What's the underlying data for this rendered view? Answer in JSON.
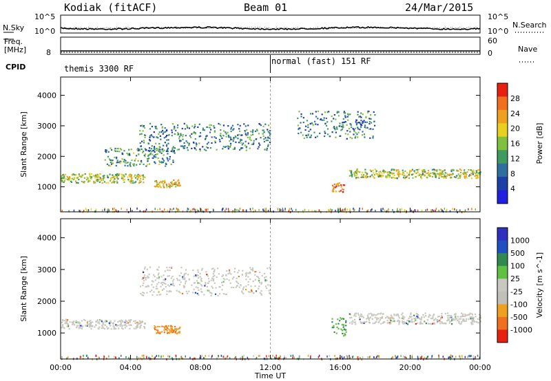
{
  "header": {
    "radar": "Kodiak (fitACF)",
    "beam": "Beam 01",
    "date": "24/Mar/2015"
  },
  "strip_panels": {
    "nsky_label": "N.Sky",
    "nsky_ticks": [
      "10^5",
      "10^0"
    ],
    "nsearch_label": "N.Search",
    "nsearch_ticks": [
      "10^5",
      "10^0"
    ],
    "freq_label_line1": "Freq.",
    "freq_label_line2": "[MHz]",
    "freq_ticks": [
      "8"
    ],
    "nave_label": "Nave",
    "nave_ticks": [
      "60",
      "0"
    ],
    "cpid_label": "CPID"
  },
  "modes": [
    {
      "text": "themis 3300 RF",
      "start_hour": 0
    },
    {
      "text": "normal (fast) 151 RF",
      "start_hour": 12
    }
  ],
  "colors": {
    "power_scale": [
      "#2020e0",
      "#1e3fa8",
      "#2f6fa0",
      "#3f9a60",
      "#7fc040",
      "#e8d020",
      "#f0a020",
      "#f07020",
      "#e82010"
    ],
    "velocity_scale": [
      "#3030c0",
      "#2050c0",
      "#308a50",
      "#60c040",
      "#c8c8c0",
      "#c0c0b8",
      "#f0a020",
      "#f07020",
      "#e82010"
    ]
  },
  "chart_data": [
    {
      "type": "heatmap",
      "panel": "power",
      "xlabel": "Time UT",
      "ylabel": "Slant Range [km]",
      "x_tick_labels": [
        "00:00",
        "04:00",
        "08:00",
        "12:00",
        "16:00",
        "20:00",
        "00:00"
      ],
      "x_ticks_hours": [
        0,
        4,
        8,
        12,
        16,
        20,
        24
      ],
      "xlim_hours": [
        0,
        24
      ],
      "y_ticks": [
        1000,
        2000,
        3000,
        4000
      ],
      "ylim": [
        180,
        4600
      ],
      "colorbar_label": "Power [dB]",
      "colorbar_ticks": [
        4,
        8,
        12,
        16,
        20,
        24,
        28
      ],
      "colorbar_range": [
        0,
        32
      ],
      "echo_bands": [
        {
          "from_hour": 0.0,
          "to_hour": 4.8,
          "range_km": [
            1150,
            1450
          ],
          "level": 0.55
        },
        {
          "from_hour": 2.5,
          "to_hour": 6.5,
          "range_km": [
            1700,
            2300
          ],
          "level": 0.35
        },
        {
          "from_hour": 4.5,
          "to_hour": 12.0,
          "range_km": [
            2200,
            3100
          ],
          "level": 0.3
        },
        {
          "from_hour": 5.3,
          "to_hour": 6.8,
          "range_km": [
            1000,
            1250
          ],
          "level": 0.7
        },
        {
          "from_hour": 15.5,
          "to_hour": 16.2,
          "range_km": [
            850,
            1150
          ],
          "level": 0.9
        },
        {
          "from_hour": 16.5,
          "to_hour": 24.0,
          "range_km": [
            1300,
            1600
          ],
          "level": 0.55
        },
        {
          "from_hour": 13.5,
          "to_hour": 18.0,
          "range_km": [
            2600,
            3500
          ],
          "level": 0.3
        }
      ]
    },
    {
      "type": "heatmap",
      "panel": "velocity",
      "xlabel": "Time UT",
      "ylabel": "Slant Range [km]",
      "x_tick_labels": [
        "00:00",
        "04:00",
        "08:00",
        "12:00",
        "16:00",
        "20:00",
        "00:00"
      ],
      "x_ticks_hours": [
        0,
        4,
        8,
        12,
        16,
        20,
        24
      ],
      "xlim_hours": [
        0,
        24
      ],
      "y_ticks": [
        1000,
        2000,
        3000,
        4000
      ],
      "ylim": [
        180,
        4600
      ],
      "colorbar_label": "Velocity [m s^-1]",
      "colorbar_ticks": [
        1000,
        500,
        100,
        25,
        -25,
        -100,
        -500,
        -1000
      ],
      "echo_bands": [
        {
          "from_hour": 0.0,
          "to_hour": 4.8,
          "range_km": [
            1150,
            1450
          ],
          "velocity": 0
        },
        {
          "from_hour": 4.5,
          "to_hour": 12.0,
          "range_km": [
            2200,
            3100
          ],
          "velocity": 0
        },
        {
          "from_hour": 5.3,
          "to_hour": 6.8,
          "range_km": [
            1000,
            1250
          ],
          "velocity": -300
        },
        {
          "from_hour": 15.5,
          "to_hour": 16.3,
          "range_km": [
            850,
            1500
          ],
          "velocity": 150
        },
        {
          "from_hour": 16.5,
          "to_hour": 24.0,
          "range_km": [
            1300,
            1650
          ],
          "velocity": 0
        }
      ]
    }
  ]
}
